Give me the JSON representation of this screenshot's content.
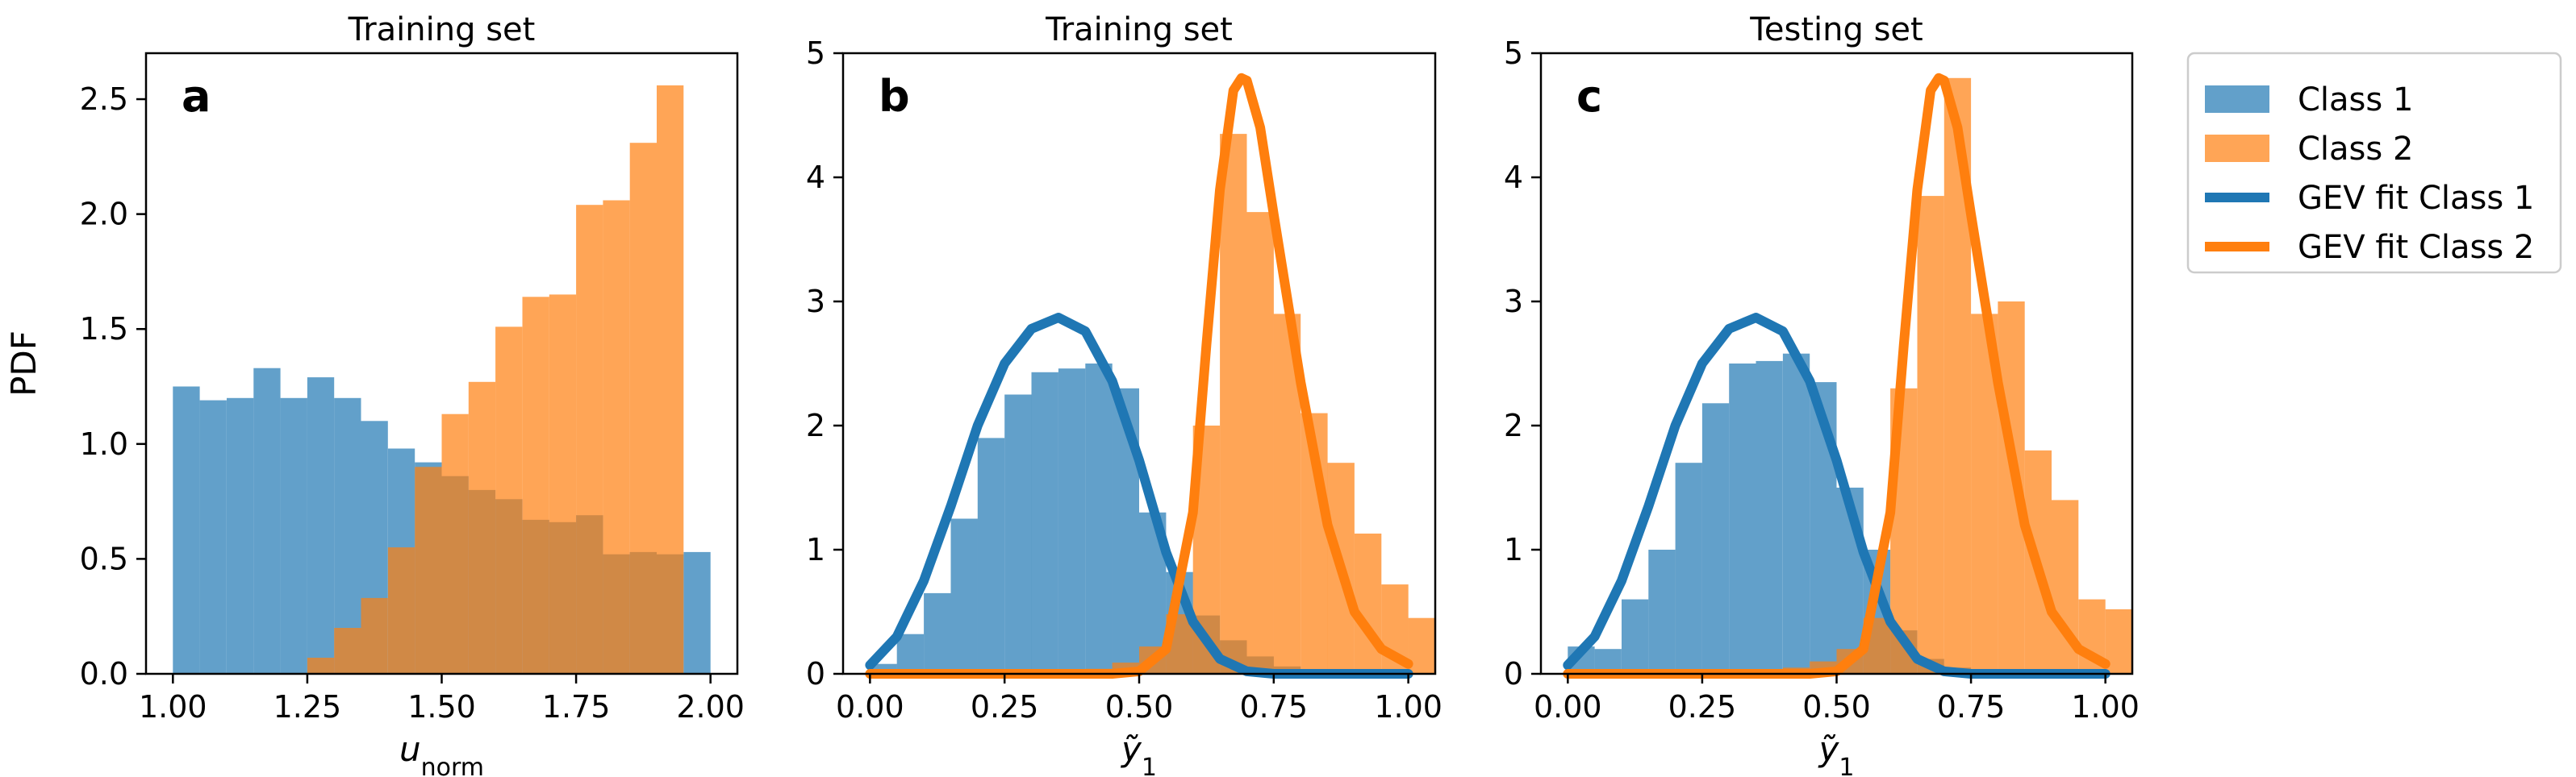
{
  "chart_data": [
    {
      "id": "a",
      "type": "bar",
      "panel_label": "a",
      "title": "Training set",
      "xlabel_base": "u",
      "xlabel_sub": "norm",
      "ylabel": "PDF",
      "xlim": [
        0.95,
        2.05
      ],
      "ylim": [
        0,
        2.7
      ],
      "xticks": [
        1.0,
        1.25,
        1.5,
        1.75,
        2.0
      ],
      "xtick_labels": [
        "1.00",
        "1.25",
        "1.50",
        "1.75",
        "2.00"
      ],
      "yticks": [
        0.0,
        0.5,
        1.0,
        1.5,
        2.0,
        2.5
      ],
      "ytick_labels": [
        "0.0",
        "0.5",
        "1.0",
        "1.5",
        "2.0",
        "2.5"
      ],
      "histograms": [
        {
          "name": "Class 1",
          "start": 1.0,
          "width": 0.05,
          "values": [
            1.25,
            1.19,
            1.2,
            1.33,
            1.2,
            1.29,
            1.2,
            1.1,
            0.98,
            0.92,
            0.86,
            0.8,
            0.76,
            0.67,
            0.66,
            0.69,
            0.52,
            0.53,
            0.52,
            0.53
          ]
        },
        {
          "name": "Class 2",
          "start": 1.25,
          "width": 0.05,
          "values": [
            0.07,
            0.2,
            0.33,
            0.55,
            0.9,
            1.13,
            1.27,
            1.51,
            1.64,
            1.65,
            2.04,
            2.06,
            2.31,
            2.56
          ]
        }
      ],
      "curves": []
    },
    {
      "id": "b",
      "type": "bar",
      "panel_label": "b",
      "title": "Training set",
      "xlabel_base": "ỹ",
      "xlabel_sub": "1",
      "ylabel": "",
      "xlim": [
        -0.05,
        1.05
      ],
      "ylim": [
        0,
        5.0
      ],
      "xticks": [
        0.0,
        0.25,
        0.5,
        0.75,
        1.0
      ],
      "xtick_labels": [
        "0.00",
        "0.25",
        "0.50",
        "0.75",
        "1.00"
      ],
      "yticks": [
        0,
        1,
        2,
        3,
        4,
        5
      ],
      "ytick_labels": [
        "0",
        "1",
        "2",
        "3",
        "4",
        "5"
      ],
      "histograms": [
        {
          "name": "Class 1",
          "start": 0.0,
          "width": 0.05,
          "values": [
            0.08,
            0.32,
            0.65,
            1.25,
            1.9,
            2.25,
            2.43,
            2.46,
            2.5,
            2.3,
            1.3,
            0.82,
            0.47,
            0.27,
            0.14,
            0.06
          ]
        },
        {
          "name": "Class 2",
          "start": 0.35,
          "width": 0.05,
          "values": [
            0.02,
            0.04,
            0.09,
            0.22,
            0.48,
            2.0,
            4.35,
            3.72,
            2.9,
            2.1,
            1.7,
            1.13,
            0.72,
            0.45
          ]
        }
      ],
      "curves": [
        {
          "name": "GEV fit Class 1",
          "x": [
            0.0,
            0.05,
            0.1,
            0.15,
            0.2,
            0.25,
            0.3,
            0.35,
            0.4,
            0.45,
            0.5,
            0.55,
            0.6,
            0.65,
            0.7,
            0.75,
            0.8,
            1.0
          ],
          "y": [
            0.07,
            0.3,
            0.75,
            1.35,
            2.0,
            2.5,
            2.78,
            2.87,
            2.76,
            2.36,
            1.72,
            0.98,
            0.42,
            0.12,
            0.02,
            0.0,
            0.0,
            0.0
          ]
        },
        {
          "name": "GEV fit Class 2",
          "x": [
            0.0,
            0.45,
            0.5,
            0.55,
            0.6,
            0.625,
            0.65,
            0.675,
            0.69,
            0.7,
            0.725,
            0.75,
            0.8,
            0.85,
            0.9,
            0.95,
            1.0
          ],
          "y": [
            0.0,
            0.0,
            0.02,
            0.2,
            1.3,
            2.65,
            3.9,
            4.7,
            4.8,
            4.78,
            4.4,
            3.7,
            2.35,
            1.2,
            0.5,
            0.2,
            0.08
          ]
        }
      ]
    },
    {
      "id": "c",
      "type": "bar",
      "panel_label": "c",
      "title": "Testing set",
      "xlabel_base": "ỹ",
      "xlabel_sub": "1",
      "ylabel": "",
      "xlim": [
        -0.05,
        1.05
      ],
      "ylim": [
        0,
        5.0
      ],
      "xticks": [
        0.0,
        0.25,
        0.5,
        0.75,
        1.0
      ],
      "xtick_labels": [
        "0.00",
        "0.25",
        "0.50",
        "0.75",
        "1.00"
      ],
      "yticks": [
        0,
        1,
        2,
        3,
        4,
        5
      ],
      "ytick_labels": [
        "0",
        "1",
        "2",
        "3",
        "4",
        "5"
      ],
      "histograms": [
        {
          "name": "Class 1",
          "start": 0.0,
          "width": 0.05,
          "values": [
            0.22,
            0.2,
            0.6,
            1.0,
            1.7,
            2.18,
            2.5,
            2.52,
            2.58,
            2.35,
            1.5,
            1.0,
            0.35,
            0.12,
            0.05,
            0.02
          ]
        },
        {
          "name": "Class 2",
          "start": 0.35,
          "width": 0.05,
          "values": [
            0.02,
            0.05,
            0.1,
            0.2,
            0.45,
            2.3,
            3.85,
            4.8,
            2.9,
            3.0,
            1.8,
            1.4,
            0.6,
            0.52
          ]
        }
      ],
      "curves": [
        {
          "name": "GEV fit Class 1",
          "x": [
            0.0,
            0.05,
            0.1,
            0.15,
            0.2,
            0.25,
            0.3,
            0.35,
            0.4,
            0.45,
            0.5,
            0.55,
            0.6,
            0.65,
            0.7,
            0.75,
            0.8,
            1.0
          ],
          "y": [
            0.07,
            0.3,
            0.75,
            1.35,
            2.0,
            2.5,
            2.78,
            2.87,
            2.76,
            2.36,
            1.72,
            0.98,
            0.42,
            0.12,
            0.02,
            0.0,
            0.0,
            0.0
          ]
        },
        {
          "name": "GEV fit Class 2",
          "x": [
            0.0,
            0.45,
            0.5,
            0.55,
            0.6,
            0.625,
            0.65,
            0.675,
            0.69,
            0.7,
            0.725,
            0.75,
            0.8,
            0.85,
            0.9,
            0.95,
            1.0
          ],
          "y": [
            0.0,
            0.0,
            0.02,
            0.2,
            1.3,
            2.65,
            3.9,
            4.7,
            4.8,
            4.78,
            4.4,
            3.7,
            2.35,
            1.2,
            0.5,
            0.2,
            0.08
          ]
        }
      ]
    }
  ],
  "legend": {
    "items": [
      {
        "label": "Class 1",
        "kind": "patch",
        "color": "#1f77b4"
      },
      {
        "label": "Class 2",
        "kind": "patch",
        "color": "#ff7f0e"
      },
      {
        "label": "GEV fit Class 1",
        "kind": "line",
        "color": "#1f77b4"
      },
      {
        "label": "GEV fit Class 2",
        "kind": "line",
        "color": "#ff7f0e"
      }
    ]
  },
  "colors": {
    "class1": "#1f77b4",
    "class2": "#ff7f0e",
    "bar_alpha": "0.7"
  }
}
